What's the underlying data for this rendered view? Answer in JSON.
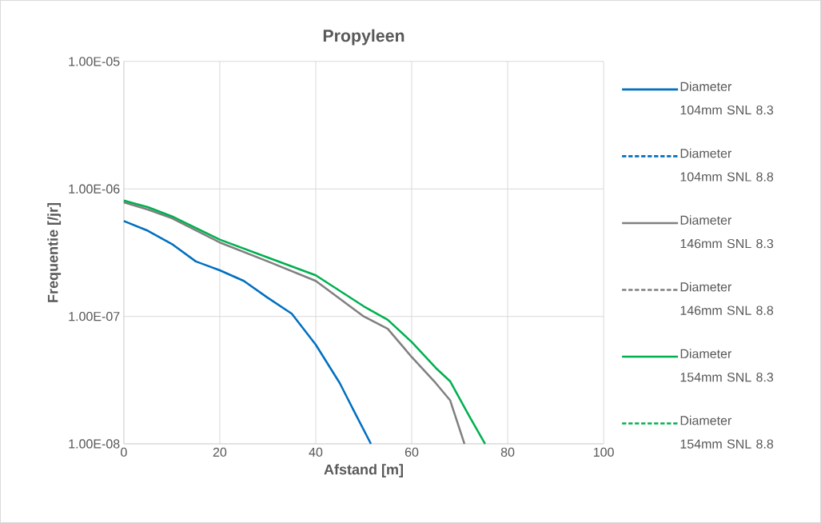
{
  "chart_data": {
    "type": "line",
    "title": "Propyleen",
    "xlabel": "Afstand [m]",
    "ylabel": "Frequentie [/jr]",
    "xlim": [
      0,
      100
    ],
    "xticks": [
      0,
      20,
      40,
      60,
      80,
      100
    ],
    "ylim": [
      1e-08,
      1e-05
    ],
    "log": "y",
    "yticks": [
      {
        "value": 1e-08,
        "label": "1.00E-08"
      },
      {
        "value": 1e-07,
        "label": "1.00E-07"
      },
      {
        "value": 1e-06,
        "label": "1.00E-06"
      },
      {
        "value": 1e-05,
        "label": "1.00E-05"
      }
    ],
    "grid": true,
    "legend": "right",
    "marker": "none",
    "series": [
      {
        "name": "Diameter 104mm SNL 8.3",
        "color": "#0070c0",
        "line_style": "solid",
        "x": [
          0,
          5,
          10,
          15,
          20,
          25,
          30,
          35,
          40,
          45,
          48,
          51.5
        ],
        "values": [
          5.6e-07,
          4.7e-07,
          3.7e-07,
          2.7e-07,
          2.3e-07,
          1.9e-07,
          1.4e-07,
          1.05e-07,
          6e-08,
          3e-08,
          1.8e-08,
          1e-08
        ]
      },
      {
        "name": "Diameter 104mm SNL 8.8",
        "color": "#0070c0",
        "line_style": "dashed"
      },
      {
        "name": "Diameter 146mm SNL 8.3",
        "color": "#808080",
        "line_style": "solid",
        "x": [
          0,
          5,
          10,
          20,
          30,
          40,
          50,
          55,
          60,
          65,
          68,
          71
        ],
        "values": [
          7.85e-07,
          6.9e-07,
          5.9e-07,
          3.8e-07,
          2.7e-07,
          1.9e-07,
          1e-07,
          8e-08,
          4.8e-08,
          3e-08,
          2.2e-08,
          1e-08
        ]
      },
      {
        "name": "Diameter 146mm SNL 8.8",
        "color": "#808080",
        "line_style": "dashed"
      },
      {
        "name": "Diameter 154mm SNL 8.3",
        "color": "#00b050",
        "line_style": "solid",
        "x": [
          0,
          5,
          10,
          20,
          30,
          40,
          50,
          55,
          60,
          65,
          68,
          72,
          75.3
        ],
        "values": [
          8.1e-07,
          7.2e-07,
          6.1e-07,
          4e-07,
          2.9e-07,
          2.1e-07,
          1.2e-07,
          9.4e-08,
          6.3e-08,
          3.95e-08,
          3.1e-08,
          1.65e-08,
          1e-08
        ]
      },
      {
        "name": "Diameter 154mm SNL 8.8",
        "color": "#00b050",
        "line_style": "dashed"
      }
    ]
  }
}
